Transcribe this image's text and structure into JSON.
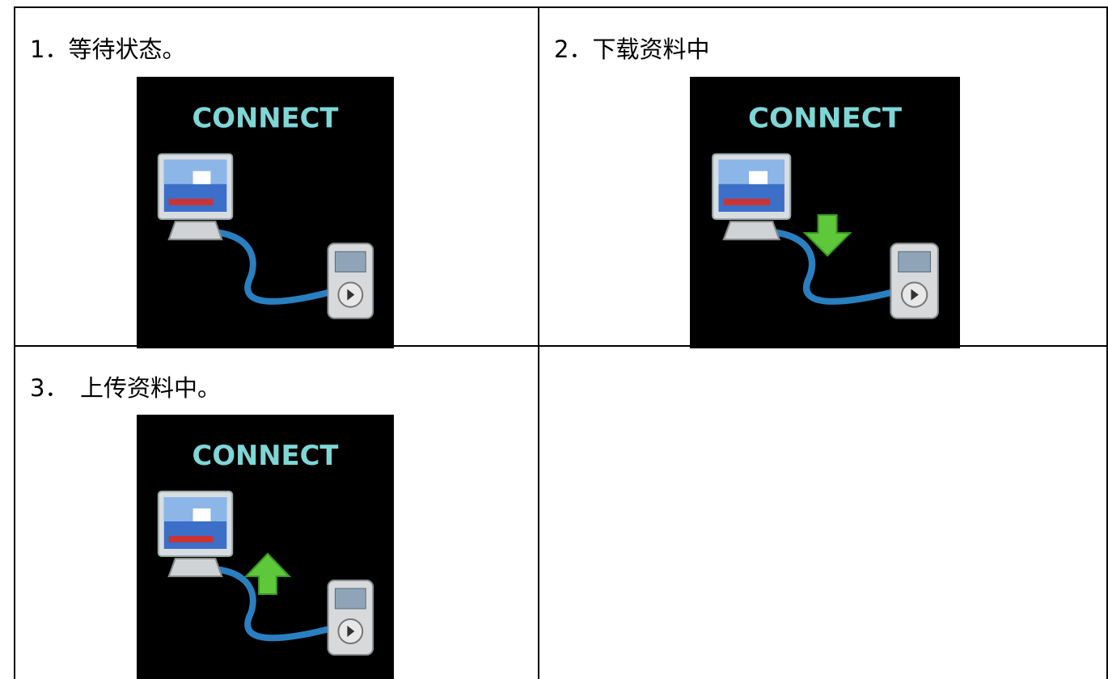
{
  "table": {
    "rows": [
      [
        {
          "label": "1．等待状态。",
          "screen_text": "CONNECT"
        },
        {
          "label": "2．下载资料中",
          "screen_text": "CONNECT"
        }
      ],
      [
        {
          "label": "3．　上传资料中。",
          "screen_text": "CONNECT"
        }
      ]
    ]
  }
}
